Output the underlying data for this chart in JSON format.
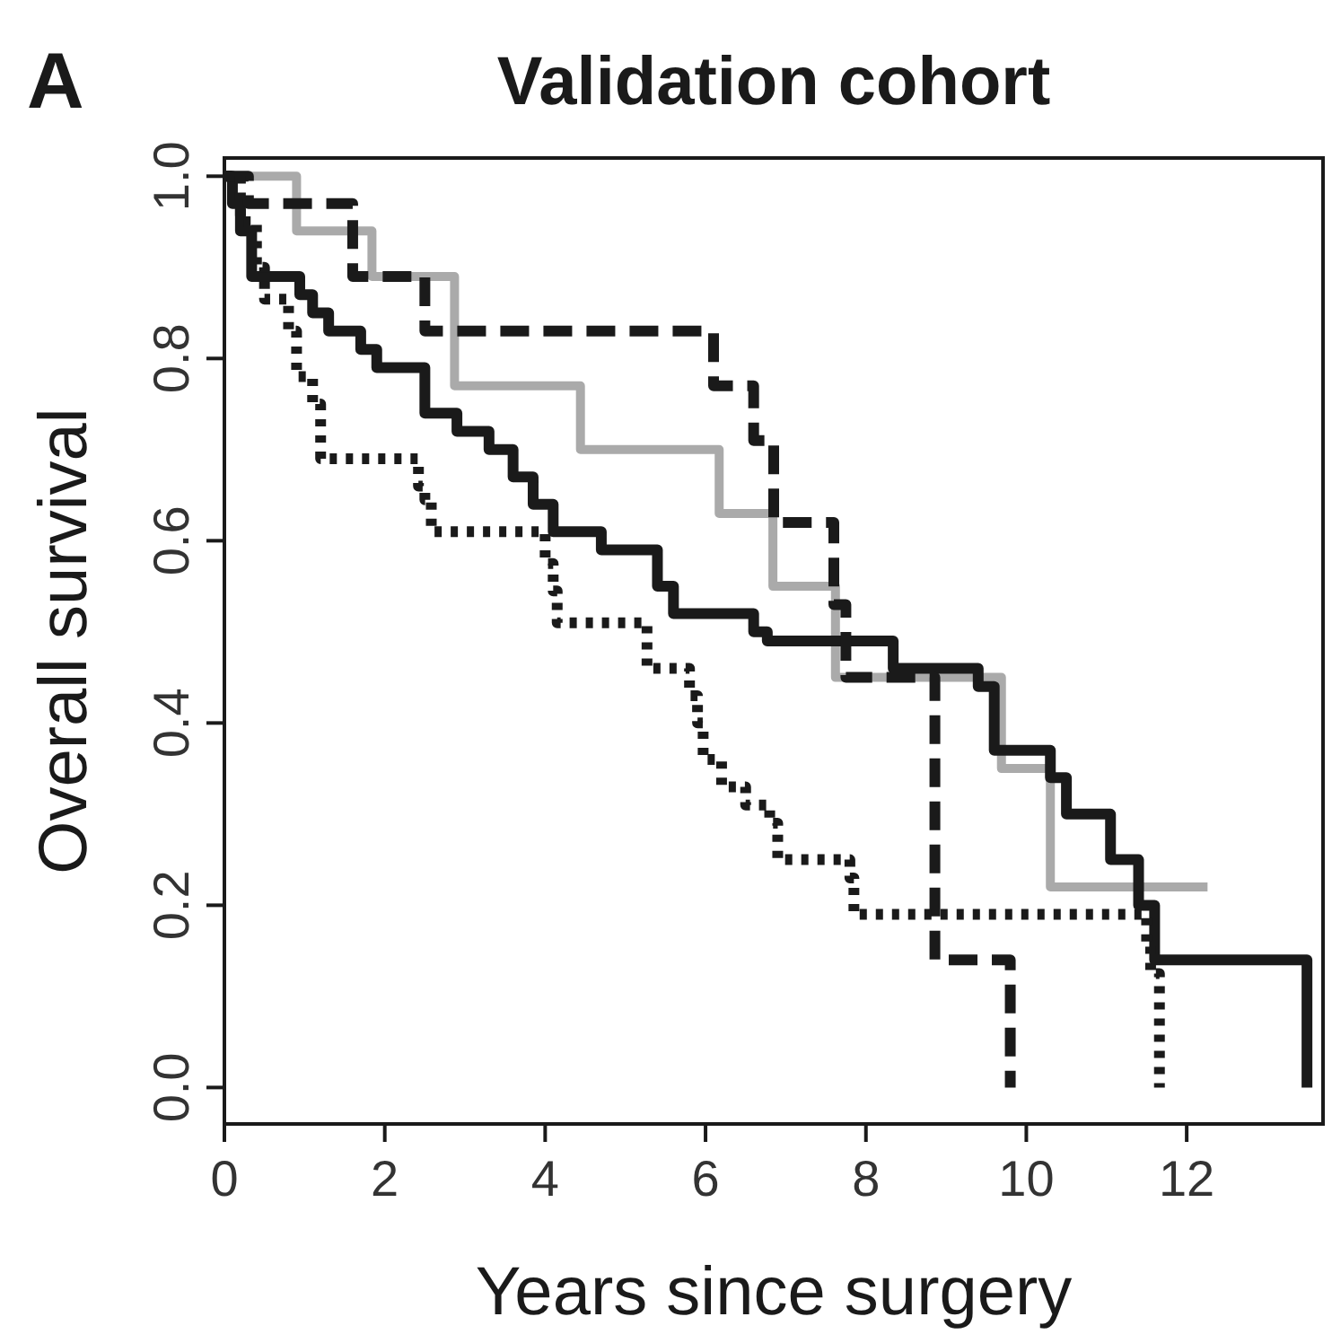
{
  "chart_data": {
    "type": "step",
    "title": "Validation cohort",
    "xlabel": "Years since surgery",
    "ylabel": "Overall survival",
    "annotations": [
      "A"
    ],
    "xlim": [
      0,
      13.7
    ],
    "ylim": [
      -0.04,
      1.02
    ],
    "xticks": [
      0,
      2,
      4,
      6,
      8,
      10,
      12
    ],
    "yticks": [
      {
        "value": 0,
        "label": "0.0"
      },
      {
        "value": 0.2,
        "label": "0.2"
      },
      {
        "value": 0.4,
        "label": "0.4"
      },
      {
        "value": 0.6,
        "label": "0.6"
      },
      {
        "value": 0.8,
        "label": "0.8"
      },
      {
        "value": 1,
        "label": "1.0"
      }
    ],
    "grid": false,
    "series": [
      {
        "color": "#aaaaaa",
        "line_style": "solid",
        "x": [
          0,
          0.9,
          1.84,
          2.87,
          4.44,
          6.17,
          6.84,
          7.62,
          9.69,
          10.3,
          12.26
        ],
        "values": [
          1,
          0.94,
          0.89,
          0.77,
          0.7,
          0.63,
          0.55,
          0.45,
          0.35,
          0.22,
          0.22
        ]
      },
      {
        "color": "#1a1a1a",
        "line_style": "solid",
        "x": [
          0,
          0.1,
          0.2,
          0.34,
          0.94,
          1.1,
          1.3,
          1.7,
          1.9,
          2.5,
          2.9,
          3.3,
          3.6,
          3.85,
          4.1,
          4.7,
          5.4,
          5.6,
          6.6,
          6.77,
          8.34,
          9.4,
          9.6,
          10.3,
          10.5,
          11.05,
          11.4,
          11.6,
          13.5,
          13.5
        ],
        "values": [
          1,
          0.97,
          0.94,
          0.89,
          0.87,
          0.85,
          0.83,
          0.81,
          0.79,
          0.74,
          0.72,
          0.7,
          0.67,
          0.64,
          0.61,
          0.59,
          0.55,
          0.52,
          0.5,
          0.49,
          0.46,
          0.44,
          0.37,
          0.34,
          0.3,
          0.25,
          0.2,
          0.14,
          0.14,
          0
        ]
      },
      {
        "color": "#1a1a1a",
        "line_style": "dashed",
        "x": [
          0,
          0.3,
          1.6,
          2.5,
          6.1,
          6.6,
          6.85,
          7.6,
          7.75,
          8.86,
          9.8,
          9.8
        ],
        "values": [
          1,
          0.97,
          0.89,
          0.83,
          0.77,
          0.71,
          0.62,
          0.53,
          0.45,
          0.14,
          0.14,
          0
        ]
      },
      {
        "color": "#1a1a1a",
        "line_style": "dotted",
        "x": [
          0,
          0.2,
          0.4,
          0.5,
          0.8,
          0.9,
          1.1,
          1.2,
          2.42,
          2.5,
          2.58,
          4.0,
          4.1,
          4.15,
          5.27,
          5.8,
          5.9,
          5.97,
          6.2,
          6.5,
          6.8,
          6.9,
          7.8,
          7.85,
          11.5,
          11.55,
          11.66,
          11.66
        ],
        "values": [
          1,
          0.95,
          0.9,
          0.865,
          0.83,
          0.78,
          0.75,
          0.69,
          0.66,
          0.645,
          0.61,
          0.575,
          0.545,
          0.51,
          0.46,
          0.43,
          0.4,
          0.36,
          0.33,
          0.31,
          0.29,
          0.25,
          0.23,
          0.19,
          0.16,
          0.125,
          0.125,
          0
        ]
      }
    ]
  }
}
